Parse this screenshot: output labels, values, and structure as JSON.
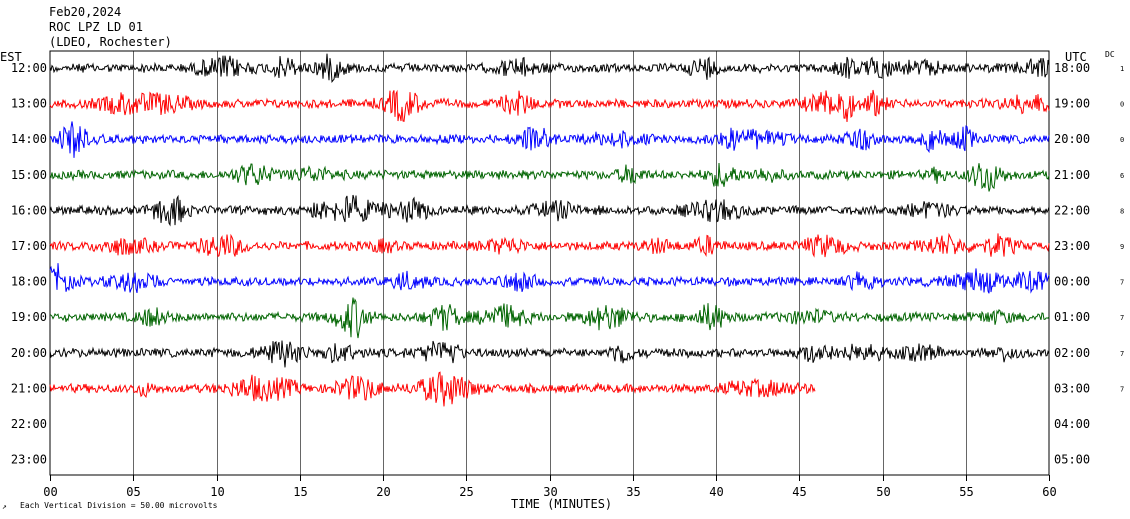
{
  "header": {
    "date": "Feb20,2024",
    "station": "ROC LPZ LD 01",
    "network": "(LDEO, Rochester)",
    "left_tz": "EST",
    "right_tz": "UTC",
    "dc_label": "DC"
  },
  "footer": {
    "scale_note": "Each Vertical Division =   50.00 microvolts",
    "corner_mark": "↗"
  },
  "chart_data": {
    "type": "line",
    "title": "ROC LPZ LD 01",
    "xlabel": "TIME (MINUTES)",
    "ylabel": "",
    "xlim": [
      0,
      60
    ],
    "x_ticks": [
      "00",
      "05",
      "10",
      "15",
      "20",
      "25",
      "30",
      "35",
      "40",
      "45",
      "50",
      "55",
      "60"
    ],
    "grid": "vertical every 5 minutes",
    "rows": [
      {
        "est": "12:00",
        "utc": "18:00",
        "dc": "1",
        "color": "#000000",
        "end_min": 60
      },
      {
        "est": "13:00",
        "utc": "19:00",
        "dc": "0",
        "color": "#ff0000",
        "end_min": 60
      },
      {
        "est": "14:00",
        "utc": "20:00",
        "dc": "0",
        "color": "#0000ff",
        "end_min": 60
      },
      {
        "est": "15:00",
        "utc": "21:00",
        "dc": "6",
        "color": "#006400",
        "end_min": 60
      },
      {
        "est": "16:00",
        "utc": "22:00",
        "dc": "8",
        "color": "#000000",
        "end_min": 60
      },
      {
        "est": "17:00",
        "utc": "23:00",
        "dc": "9",
        "color": "#ff0000",
        "end_min": 60
      },
      {
        "est": "18:00",
        "utc": "00:00",
        "dc": "7",
        "color": "#0000ff",
        "end_min": 60
      },
      {
        "est": "19:00",
        "utc": "01:00",
        "dc": "7",
        "color": "#006400",
        "end_min": 60
      },
      {
        "est": "20:00",
        "utc": "02:00",
        "dc": "7",
        "color": "#000000",
        "end_min": 60
      },
      {
        "est": "21:00",
        "utc": "03:00",
        "dc": "7",
        "color": "#ff0000",
        "end_min": 46
      },
      {
        "est": "22:00",
        "utc": "04:00",
        "dc": "",
        "color": "#000000",
        "end_min": 0
      },
      {
        "est": "23:00",
        "utc": "05:00",
        "dc": "",
        "color": "#000000",
        "end_min": 0
      }
    ]
  }
}
